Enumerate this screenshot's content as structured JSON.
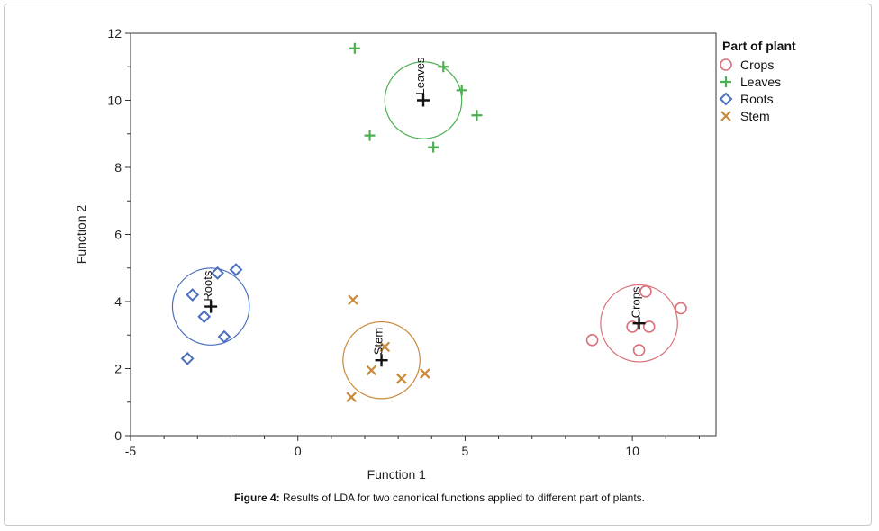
{
  "caption": {
    "label": "Figure 4:",
    "text": " Results of LDA for two canonical functions applied to different part of plants."
  },
  "chart_data": {
    "type": "scatter",
    "xlabel": "Function 1",
    "ylabel": "Function 2",
    "xlim": [
      -5,
      12.5
    ],
    "ylim": [
      0,
      12
    ],
    "xticks": [
      -5,
      0,
      5,
      10
    ],
    "yticks": [
      0,
      2,
      4,
      6,
      8,
      10,
      12
    ],
    "grid": false,
    "legend": {
      "title": "Part of plant",
      "position": "right"
    },
    "series": [
      {
        "name": "Crops",
        "marker": "circle",
        "color": "#d9707a",
        "points": [
          [
            8.8,
            2.85
          ],
          [
            10.0,
            3.25
          ],
          [
            10.4,
            4.3
          ],
          [
            10.5,
            3.25
          ],
          [
            10.2,
            2.55
          ],
          [
            11.45,
            3.8
          ]
        ],
        "centroid": [
          10.2,
          3.35
        ],
        "radius": 1.15
      },
      {
        "name": "Leaves",
        "marker": "plus",
        "color": "#4caf50",
        "points": [
          [
            1.7,
            11.55
          ],
          [
            4.35,
            11.0
          ],
          [
            4.9,
            10.3
          ],
          [
            5.35,
            9.55
          ],
          [
            2.15,
            8.95
          ],
          [
            4.05,
            8.6
          ]
        ],
        "centroid": [
          3.75,
          10.0
        ],
        "radius": 1.15
      },
      {
        "name": "Roots",
        "marker": "diamond",
        "color": "#4a6fbe",
        "points": [
          [
            -1.85,
            4.95
          ],
          [
            -2.4,
            4.85
          ],
          [
            -3.15,
            4.2
          ],
          [
            -2.8,
            3.55
          ],
          [
            -2.2,
            2.95
          ],
          [
            -3.3,
            2.3
          ]
        ],
        "centroid": [
          -2.6,
          3.85
        ],
        "radius": 1.15
      },
      {
        "name": "Stem",
        "marker": "x",
        "color": "#c98a3a",
        "points": [
          [
            1.65,
            4.05
          ],
          [
            2.6,
            2.65
          ],
          [
            2.2,
            1.95
          ],
          [
            3.1,
            1.7
          ],
          [
            3.8,
            1.85
          ],
          [
            1.6,
            1.15
          ]
        ],
        "centroid": [
          2.5,
          2.25
        ],
        "radius": 1.15
      }
    ]
  }
}
